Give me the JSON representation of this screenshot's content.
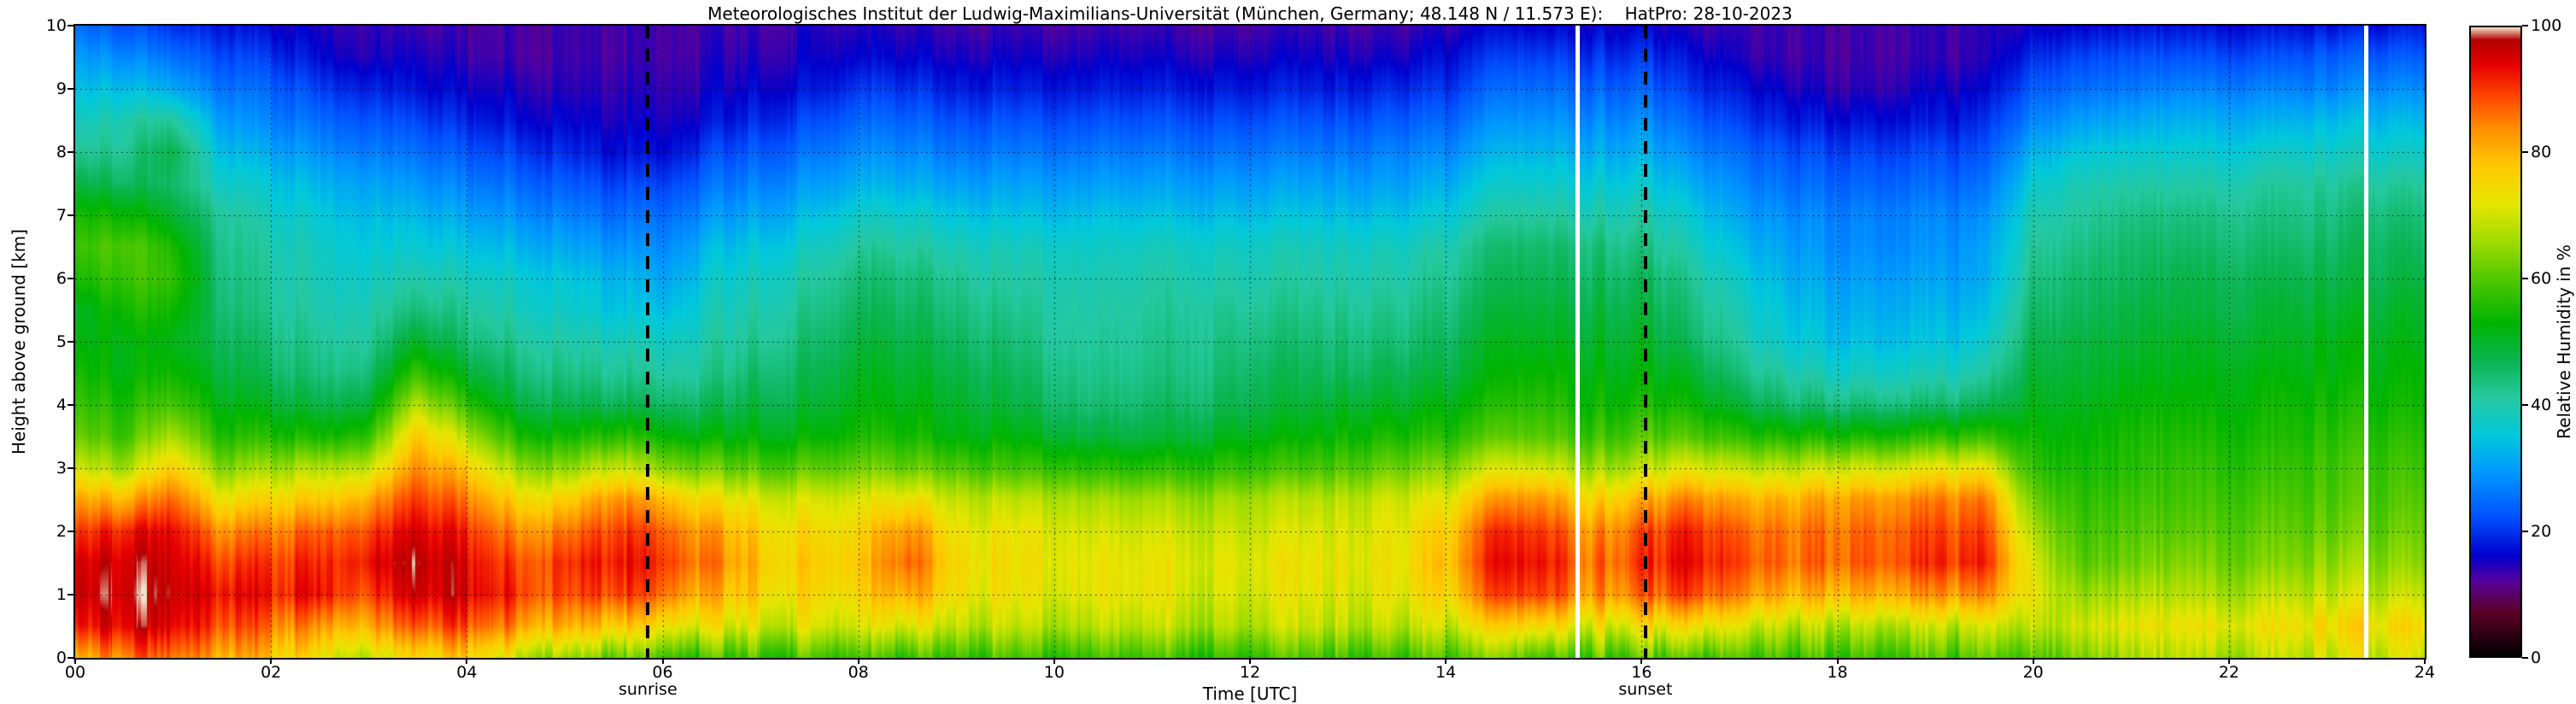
{
  "chart_data": {
    "type": "heatmap",
    "title": "Meteorologisches Institut der Ludwig-Maximilians-Universität (München, Germany; 48.148 N / 11.573 E):    HatPro: 28-10-2023",
    "xlabel": "Time [UTC]",
    "ylabel": "Height above ground [km]",
    "colorbar_label": "Relative Humidity in %",
    "x_range_hours": [
      0,
      24
    ],
    "y_range_km": [
      0,
      10
    ],
    "value_range_percent": [
      0,
      100
    ],
    "grid_on": true,
    "x_ticks": [
      {
        "v": 0,
        "label": "00"
      },
      {
        "v": 2,
        "label": "02"
      },
      {
        "v": 4,
        "label": "04"
      },
      {
        "v": 6,
        "label": "06"
      },
      {
        "v": 8,
        "label": "08"
      },
      {
        "v": 10,
        "label": "10"
      },
      {
        "v": 12,
        "label": "12"
      },
      {
        "v": 14,
        "label": "14"
      },
      {
        "v": 16,
        "label": "16"
      },
      {
        "v": 18,
        "label": "18"
      },
      {
        "v": 20,
        "label": "20"
      },
      {
        "v": 22,
        "label": "22"
      },
      {
        "v": 24,
        "label": "24"
      }
    ],
    "y_ticks": [
      {
        "v": 0,
        "label": "0"
      },
      {
        "v": 1,
        "label": "1"
      },
      {
        "v": 2,
        "label": "2"
      },
      {
        "v": 3,
        "label": "3"
      },
      {
        "v": 4,
        "label": "4"
      },
      {
        "v": 5,
        "label": "5"
      },
      {
        "v": 6,
        "label": "6"
      },
      {
        "v": 7,
        "label": "7"
      },
      {
        "v": 8,
        "label": "8"
      },
      {
        "v": 9,
        "label": "9"
      },
      {
        "v": 10,
        "label": "10"
      }
    ],
    "colorbar_ticks": [
      {
        "v": 0,
        "label": "0"
      },
      {
        "v": 20,
        "label": "20"
      },
      {
        "v": 40,
        "label": "40"
      },
      {
        "v": 60,
        "label": "60"
      },
      {
        "v": 80,
        "label": "80"
      },
      {
        "v": 100,
        "label": "100"
      }
    ],
    "annotations": [
      {
        "label": "sunrise",
        "time_utc": 5.85
      },
      {
        "label": "sunset",
        "time_utc": 16.04
      }
    ],
    "data_gaps_utc": [
      15.35,
      23.4
    ],
    "colormap": [
      [
        0,
        "#000000"
      ],
      [
        7,
        "#5c0026"
      ],
      [
        12,
        "#55009e"
      ],
      [
        16,
        "#0000cd"
      ],
      [
        22,
        "#0050ff"
      ],
      [
        29,
        "#0096ff"
      ],
      [
        35,
        "#00c8dc"
      ],
      [
        41,
        "#26c8a0"
      ],
      [
        47,
        "#0ab450"
      ],
      [
        53,
        "#00b400"
      ],
      [
        60,
        "#50c800"
      ],
      [
        66,
        "#a0dc00"
      ],
      [
        72,
        "#e6e600"
      ],
      [
        78,
        "#ffc800"
      ],
      [
        84,
        "#ff8c00"
      ],
      [
        89,
        "#ff4600"
      ],
      [
        94,
        "#e60000"
      ],
      [
        98,
        "#b40000"
      ],
      [
        100,
        "#f0e1c8"
      ]
    ],
    "grid": {
      "t_start_hours": 0,
      "t_step_hours": 0.5,
      "h_start_km": 0,
      "h_step_km": 0.5,
      "units": "% relative humidity",
      "order": "rows are time steps 00:00..24:00; each row lists heights 0 km to 10 km bottom-up",
      "values": [
        [
          80,
          92,
          96,
          95,
          90,
          82,
          70,
          62,
          58,
          55,
          52,
          50,
          55,
          58,
          55,
          48,
          42,
          38,
          34,
          30,
          25
        ],
        [
          85,
          95,
          97,
          96,
          92,
          80,
          66,
          58,
          55,
          52,
          52,
          55,
          58,
          60,
          54,
          46,
          42,
          40,
          34,
          28,
          22
        ],
        [
          88,
          96,
          98,
          97,
          95,
          88,
          78,
          68,
          60,
          55,
          52,
          55,
          58,
          56,
          50,
          46,
          48,
          42,
          32,
          26,
          20
        ],
        [
          82,
          90,
          94,
          90,
          84,
          74,
          64,
          56,
          52,
          49,
          47,
          45,
          44,
          43,
          42,
          38,
          34,
          30,
          26,
          22,
          18
        ],
        [
          78,
          86,
          92,
          90,
          85,
          76,
          66,
          56,
          50,
          46,
          44,
          42,
          41,
          40,
          38,
          35,
          31,
          27,
          24,
          20,
          16
        ],
        [
          74,
          84,
          94,
          92,
          88,
          78,
          68,
          55,
          48,
          44,
          42,
          40,
          39,
          38,
          36,
          33,
          29,
          25,
          21,
          17,
          15
        ],
        [
          70,
          82,
          90,
          94,
          90,
          82,
          70,
          58,
          50,
          45,
          42,
          40,
          38,
          36,
          34,
          31,
          27,
          23,
          19,
          15,
          14
        ],
        [
          75,
          88,
          96,
          98,
          95,
          90,
          84,
          78,
          68,
          58,
          50,
          44,
          40,
          36,
          33,
          29,
          25,
          21,
          17,
          15,
          13
        ],
        [
          78,
          90,
          96,
          95,
          92,
          86,
          78,
          68,
          58,
          50,
          45,
          42,
          39,
          35,
          31,
          27,
          23,
          19,
          16,
          14,
          13
        ],
        [
          70,
          84,
          91,
          89,
          84,
          76,
          66,
          56,
          49,
          45,
          42,
          39,
          37,
          33,
          29,
          25,
          21,
          17,
          15,
          13,
          13
        ],
        [
          65,
          80,
          88,
          90,
          85,
          76,
          64,
          54,
          47,
          43,
          40,
          37,
          35,
          31,
          27,
          23,
          19,
          16,
          14,
          13,
          13
        ],
        [
          62,
          78,
          90,
          93,
          90,
          84,
          70,
          57,
          47,
          42,
          39,
          35,
          33,
          29,
          25,
          21,
          17,
          15,
          14,
          13,
          13
        ],
        [
          60,
          75,
          87,
          91,
          88,
          80,
          65,
          54,
          46,
          41,
          38,
          34,
          31,
          28,
          25,
          21,
          17,
          15,
          14,
          13,
          13
        ],
        [
          58,
          72,
          80,
          85,
          82,
          74,
          62,
          52,
          46,
          42,
          40,
          38,
          36,
          33,
          29,
          25,
          21,
          17,
          15,
          14,
          13
        ],
        [
          58,
          70,
          76,
          78,
          76,
          71,
          60,
          52,
          48,
          45,
          42,
          40,
          38,
          35,
          31,
          27,
          23,
          19,
          16,
          14,
          13
        ],
        [
          58,
          70,
          74,
          76,
          74,
          70,
          60,
          52,
          48,
          46,
          44,
          42,
          40,
          37,
          33,
          29,
          25,
          21,
          17,
          15,
          14
        ],
        [
          58,
          70,
          75,
          77,
          75,
          71,
          62,
          55,
          52,
          50,
          48,
          46,
          44,
          41,
          37,
          32,
          28,
          24,
          20,
          16,
          14
        ],
        [
          58,
          72,
          82,
          88,
          84,
          74,
          62,
          55,
          52,
          50,
          48,
          46,
          44,
          41,
          37,
          32,
          28,
          24,
          20,
          16,
          14
        ],
        [
          58,
          69,
          74,
          75,
          73,
          69,
          60,
          52,
          50,
          48,
          46,
          44,
          42,
          39,
          35,
          30,
          26,
          22,
          18,
          15,
          13
        ],
        [
          58,
          68,
          72,
          73,
          72,
          68,
          58,
          52,
          48,
          46,
          44,
          42,
          40,
          38,
          34,
          30,
          26,
          22,
          18,
          15,
          13
        ],
        [
          58,
          68,
          72,
          73,
          72,
          68,
          58,
          50,
          46,
          44,
          42,
          41,
          40,
          38,
          34,
          30,
          26,
          22,
          18,
          15,
          13
        ],
        [
          58,
          68,
          72,
          72,
          70,
          66,
          56,
          48,
          44,
          42,
          41,
          40,
          39,
          37,
          34,
          30,
          26,
          22,
          18,
          15,
          13
        ],
        [
          58,
          68,
          72,
          72,
          70,
          66,
          56,
          48,
          45,
          43,
          42,
          41,
          40,
          38,
          34,
          30,
          26,
          22,
          18,
          15,
          13
        ],
        [
          58,
          68,
          71,
          72,
          70,
          66,
          57,
          50,
          46,
          44,
          43,
          42,
          40,
          38,
          34,
          30,
          26,
          22,
          18,
          15,
          13
        ],
        [
          58,
          68,
          71,
          72,
          70,
          67,
          58,
          52,
          48,
          46,
          44,
          42,
          40,
          38,
          34,
          30,
          26,
          22,
          18,
          15,
          13
        ],
        [
          58,
          68,
          71,
          72,
          70,
          67,
          58,
          52,
          48,
          46,
          44,
          42,
          40,
          38,
          34,
          30,
          26,
          22,
          18,
          15,
          13
        ],
        [
          58,
          68,
          71,
          72,
          71,
          68,
          60,
          54,
          50,
          46,
          44,
          42,
          40,
          38,
          34,
          30,
          26,
          22,
          18,
          15,
          13
        ],
        [
          58,
          68,
          72,
          73,
          72,
          70,
          62,
          55,
          50,
          47,
          44,
          42,
          40,
          38,
          34,
          30,
          27,
          23,
          19,
          15,
          13
        ],
        [
          60,
          70,
          76,
          79,
          77,
          72,
          64,
          56,
          52,
          48,
          46,
          44,
          42,
          40,
          36,
          32,
          28,
          24,
          20,
          17,
          14
        ],
        [
          62,
          75,
          88,
          92,
          90,
          82,
          70,
          60,
          55,
          52,
          50,
          48,
          46,
          44,
          40,
          36,
          32,
          28,
          24,
          20,
          16
        ],
        [
          62,
          78,
          92,
          95,
          92,
          85,
          72,
          62,
          58,
          55,
          52,
          50,
          48,
          46,
          42,
          38,
          34,
          30,
          26,
          22,
          17
        ],
        [
          60,
          72,
          83,
          86,
          83,
          76,
          66,
          58,
          54,
          52,
          50,
          48,
          46,
          44,
          40,
          36,
          32,
          28,
          24,
          20,
          16
        ],
        [
          60,
          73,
          86,
          90,
          88,
          80,
          68,
          60,
          55,
          52,
          50,
          48,
          46,
          43,
          40,
          36,
          32,
          28,
          24,
          20,
          16
        ],
        [
          60,
          75,
          90,
          94,
          92,
          85,
          72,
          60,
          54,
          50,
          46,
          44,
          42,
          39,
          36,
          32,
          28,
          24,
          20,
          17,
          14
        ],
        [
          58,
          70,
          83,
          88,
          86,
          80,
          68,
          56,
          48,
          43,
          40,
          38,
          36,
          33,
          30,
          27,
          24,
          20,
          17,
          14,
          13
        ],
        [
          58,
          68,
          80,
          86,
          85,
          80,
          68,
          55,
          45,
          40,
          36,
          34,
          32,
          30,
          28,
          25,
          22,
          18,
          15,
          13,
          13
        ],
        [
          58,
          68,
          80,
          87,
          86,
          82,
          70,
          55,
          44,
          38,
          34,
          32,
          30,
          28,
          27,
          24,
          21,
          17,
          14,
          13,
          13
        ],
        [
          58,
          68,
          81,
          88,
          87,
          83,
          70,
          55,
          44,
          38,
          34,
          32,
          30,
          28,
          27,
          24,
          21,
          17,
          14,
          13,
          13
        ],
        [
          58,
          68,
          82,
          90,
          88,
          84,
          72,
          56,
          44,
          38,
          34,
          32,
          30,
          28,
          27,
          24,
          21,
          17,
          15,
          13,
          13
        ],
        [
          58,
          68,
          82,
          90,
          88,
          84,
          72,
          56,
          45,
          39,
          35,
          32,
          30,
          29,
          27,
          24,
          21,
          18,
          15,
          13,
          13
        ],
        [
          62,
          70,
          74,
          72,
          68,
          63,
          58,
          55,
          52,
          50,
          48,
          46,
          44,
          42,
          40,
          37,
          33,
          28,
          24,
          20,
          16
        ],
        [
          66,
          72,
          67,
          62,
          60,
          58,
          56,
          54,
          52,
          50,
          49,
          47,
          46,
          44,
          42,
          40,
          36,
          31,
          26,
          22,
          17
        ],
        [
          66,
          72,
          67,
          62,
          60,
          58,
          56,
          55,
          53,
          51,
          49,
          48,
          46,
          45,
          43,
          40,
          36,
          31,
          26,
          22,
          17
        ],
        [
          67,
          72,
          67,
          63,
          60,
          58,
          57,
          55,
          53,
          51,
          50,
          48,
          47,
          45,
          43,
          40,
          36,
          32,
          27,
          22,
          17
        ],
        [
          67,
          73,
          67,
          63,
          61,
          59,
          57,
          55,
          53,
          52,
          50,
          48,
          47,
          45,
          43,
          40,
          36,
          32,
          27,
          22,
          17
        ],
        [
          68,
          73,
          68,
          63,
          61,
          59,
          57,
          55,
          54,
          52,
          50,
          49,
          47,
          45,
          43,
          41,
          37,
          32,
          27,
          22,
          17
        ],
        [
          68,
          74,
          68,
          64,
          61,
          59,
          58,
          56,
          54,
          52,
          51,
          49,
          47,
          45,
          43,
          41,
          37,
          33,
          27,
          23,
          17
        ],
        [
          69,
          74,
          68,
          64,
          61,
          59,
          58,
          56,
          54,
          52,
          51,
          49,
          47,
          46,
          44,
          41,
          37,
          33,
          28,
          23,
          17
        ],
        [
          70,
          75,
          69,
          64,
          62,
          60,
          58,
          56,
          54,
          53,
          51,
          50,
          48,
          46,
          44,
          41,
          37,
          33,
          28,
          23,
          18
        ]
      ]
    }
  }
}
